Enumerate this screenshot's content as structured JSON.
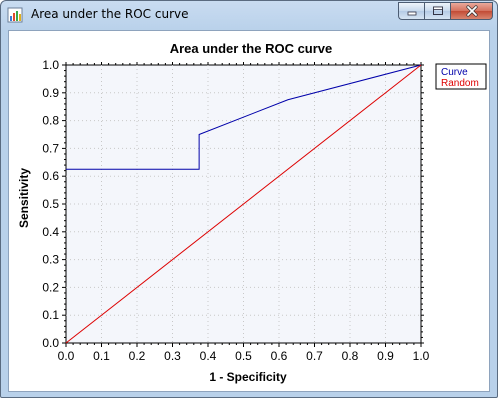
{
  "window": {
    "title": "Area under the ROC curve",
    "icon": "chart-app-icon",
    "controls": [
      "minimize-icon",
      "maximize-icon",
      "close-icon"
    ]
  },
  "chart_data": {
    "type": "line",
    "title": "Area under the ROC curve",
    "xlabel": "1 - Specificity",
    "ylabel": "Sensitivity",
    "xlim": [
      0,
      1
    ],
    "ylim": [
      0,
      1
    ],
    "xticks": [
      "0.0",
      "0.1",
      "0.2",
      "0.3",
      "0.4",
      "0.5",
      "0.6",
      "0.7",
      "0.8",
      "0.9",
      "1.0"
    ],
    "yticks": [
      "0.0",
      "0.1",
      "0.2",
      "0.3",
      "0.4",
      "0.5",
      "0.6",
      "0.7",
      "0.8",
      "0.9",
      "1.0"
    ],
    "grid": true,
    "legend_position": "top-right",
    "series": [
      {
        "name": "Curve",
        "color": "#0000aa",
        "x": [
          0.0,
          0.375,
          0.375,
          0.625,
          1.0
        ],
        "y": [
          0.625,
          0.625,
          0.75,
          0.875,
          1.0
        ]
      },
      {
        "name": "Random",
        "color": "#dd0000",
        "x": [
          0.0,
          1.0
        ],
        "y": [
          0.0,
          1.0
        ]
      }
    ]
  }
}
